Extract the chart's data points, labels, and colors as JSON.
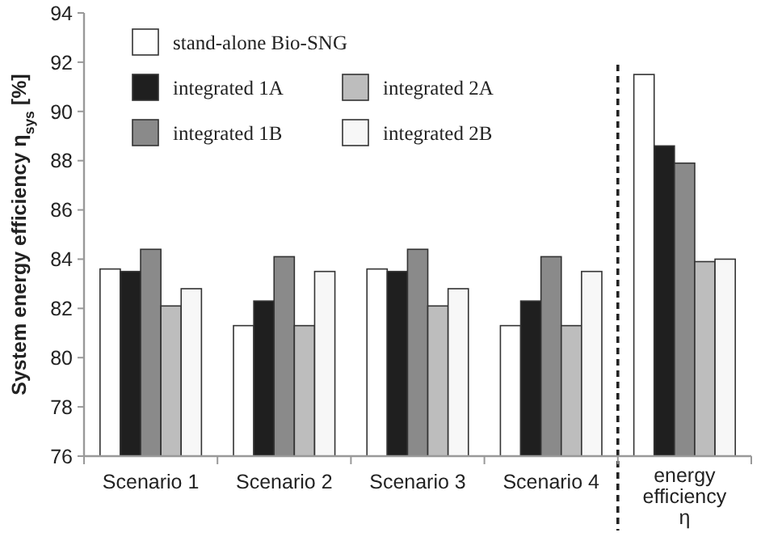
{
  "chart_data": {
    "type": "bar",
    "ylabel": "System energy efficiency η$_{sys}$ [%]",
    "categories": [
      "Scenario 1",
      "Scenario 2",
      "Scenario 3",
      "Scenario 4",
      "energy efficiency η"
    ],
    "series": [
      {
        "name": "stand-alone Bio-SNG",
        "color": "#ffffff",
        "values": [
          83.6,
          81.3,
          83.6,
          81.3,
          91.5
        ]
      },
      {
        "name": "integrated 1A",
        "color": "#1f1f1f",
        "values": [
          83.5,
          82.3,
          83.5,
          82.3,
          88.6
        ]
      },
      {
        "name": "integrated 1B",
        "color": "#8a8a8a",
        "values": [
          84.4,
          84.1,
          84.4,
          84.1,
          87.9
        ]
      },
      {
        "name": "integrated 2A",
        "color": "#bdbdbd",
        "values": [
          82.1,
          81.3,
          82.1,
          81.3,
          83.9
        ]
      },
      {
        "name": "integrated 2B",
        "color": "#f7f7f7",
        "values": [
          82.8,
          83.5,
          82.8,
          83.5,
          84.0
        ]
      }
    ],
    "ylim": [
      76,
      94
    ],
    "yticks": [
      76,
      78,
      80,
      82,
      84,
      86,
      88,
      90,
      92,
      94
    ],
    "legend": "top left",
    "grid": false
  }
}
